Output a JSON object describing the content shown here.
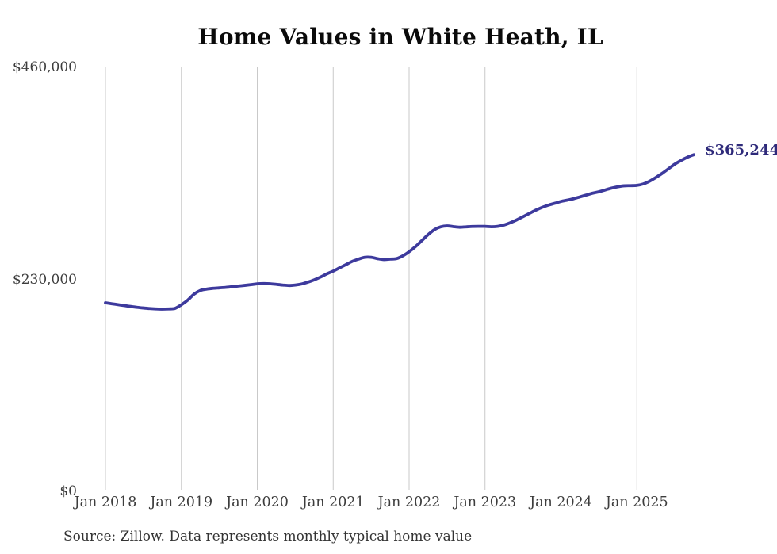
{
  "colors": {
    "line": "#3d3a9d",
    "end_label": "#2e2a7a",
    "gridline": "#c9c9c9",
    "axis_text": "#3d3d3d",
    "title_text": "#0a0a0a",
    "source_text": "#333333",
    "background": "#ffffff"
  },
  "chart_data": {
    "type": "line",
    "title": "Home Values in White Heath, IL",
    "xlabel": "",
    "ylabel": "",
    "ylim": [
      0,
      460000
    ],
    "grid": "vertical-only-at-january-of-each-year",
    "legend": "none",
    "source_note": "Source: Zillow. Data represents monthly typical home value",
    "last_point_label": "$365,244",
    "last_point_value": 365244,
    "y_ticks": [
      {
        "value": 0,
        "label": "$0"
      },
      {
        "value": 230000,
        "label": "$230,000"
      },
      {
        "value": 460000,
        "label": "$460,000"
      }
    ],
    "x_ticks": [
      "Jan 2018",
      "Jan 2019",
      "Jan 2020",
      "Jan 2021",
      "Jan 2022",
      "Jan 2023",
      "Jan 2024",
      "Jan 2025"
    ],
    "series": [
      {
        "name": "Monthly typical home value",
        "months": [
          "2018-01",
          "2018-02",
          "2018-03",
          "2018-04",
          "2018-05",
          "2018-06",
          "2018-07",
          "2018-08",
          "2018-09",
          "2018-10",
          "2018-11",
          "2018-12",
          "2019-01",
          "2019-02",
          "2019-03",
          "2019-04",
          "2019-05",
          "2019-06",
          "2019-07",
          "2019-08",
          "2019-09",
          "2019-10",
          "2019-11",
          "2019-12",
          "2020-01",
          "2020-02",
          "2020-03",
          "2020-04",
          "2020-05",
          "2020-06",
          "2020-07",
          "2020-08",
          "2020-09",
          "2020-10",
          "2020-11",
          "2020-12",
          "2021-01",
          "2021-02",
          "2021-03",
          "2021-04",
          "2021-05",
          "2021-06",
          "2021-07",
          "2021-08",
          "2021-09",
          "2021-10",
          "2021-11",
          "2021-12",
          "2022-01",
          "2022-02",
          "2022-03",
          "2022-04",
          "2022-05",
          "2022-06",
          "2022-07",
          "2022-08",
          "2022-09",
          "2022-10",
          "2022-11",
          "2022-12",
          "2023-01",
          "2023-02",
          "2023-03",
          "2023-04",
          "2023-05",
          "2023-06",
          "2023-07",
          "2023-08",
          "2023-09",
          "2023-10",
          "2023-11",
          "2023-12",
          "2024-01",
          "2024-02",
          "2024-03",
          "2024-04",
          "2024-05",
          "2024-06",
          "2024-07",
          "2024-08",
          "2024-09",
          "2024-10",
          "2024-11",
          "2024-12",
          "2025-01",
          "2025-02",
          "2025-03",
          "2025-04",
          "2025-05",
          "2025-06",
          "2025-07",
          "2025-08",
          "2025-09",
          "2025-10"
        ],
        "values": [
          204600,
          203600,
          202600,
          201600,
          200600,
          199700,
          199000,
          198400,
          198000,
          197800,
          198000,
          198600,
          202500,
          207500,
          214000,
          218000,
          219500,
          220300,
          220800,
          221300,
          222000,
          222800,
          223500,
          224300,
          225200,
          225500,
          225300,
          224600,
          223900,
          223400,
          223900,
          225000,
          227000,
          229500,
          232500,
          236000,
          239000,
          242500,
          246000,
          249500,
          252000,
          254000,
          254000,
          252500,
          251500,
          252000,
          252500,
          255500,
          260000,
          265500,
          272000,
          278500,
          284000,
          287000,
          288000,
          287200,
          286600,
          287000,
          287400,
          287500,
          287500,
          287100,
          287500,
          289000,
          291500,
          294500,
          298000,
          301500,
          305000,
          308000,
          310500,
          312500,
          314500,
          316000,
          317500,
          319500,
          321500,
          323500,
          325000,
          327000,
          329000,
          330500,
          331500,
          331700,
          332000,
          333500,
          336500,
          340500,
          345000,
          350000,
          355000,
          359000,
          362500,
          365244
        ]
      }
    ]
  }
}
